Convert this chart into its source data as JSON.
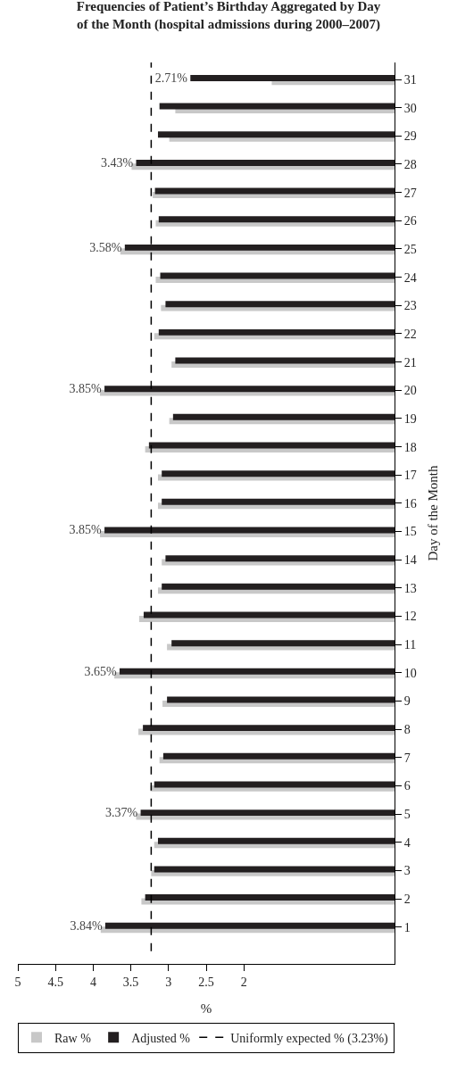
{
  "chart_data": {
    "type": "bar",
    "orientation": "horizontal",
    "title": "Frequencies of Patient’s Birthday Aggregated by Day of the Month (hospital admissions during 2000–2007)",
    "xlabel": "%",
    "ylabel": "Day of the Month",
    "categories": [
      "31",
      "30",
      "29",
      "28",
      "27",
      "26",
      "25",
      "24",
      "23",
      "22",
      "21",
      "20",
      "19",
      "18",
      "17",
      "16",
      "15",
      "14",
      "13",
      "12",
      "11",
      "10",
      "9",
      "8",
      "7",
      "6",
      "5",
      "4",
      "3",
      "2",
      "1"
    ],
    "series": [
      {
        "name": "Raw %",
        "color": "#c8c8c8",
        "values": [
          1.63,
          2.91,
          2.99,
          3.49,
          3.21,
          3.17,
          3.64,
          3.17,
          3.1,
          3.19,
          2.96,
          3.91,
          2.99,
          3.31,
          3.14,
          3.14,
          3.91,
          3.09,
          3.14,
          3.39,
          3.02,
          3.72,
          3.08,
          3.4,
          3.12,
          3.24,
          3.43,
          3.19,
          3.23,
          3.36,
          3.9
        ]
      },
      {
        "name": "Adjusted %",
        "color": "#231f20",
        "values": [
          2.71,
          3.12,
          3.14,
          3.43,
          3.18,
          3.13,
          3.58,
          3.11,
          3.04,
          3.13,
          2.91,
          3.85,
          2.94,
          3.26,
          3.09,
          3.09,
          3.85,
          3.04,
          3.09,
          3.33,
          2.96,
          3.65,
          3.02,
          3.34,
          3.07,
          3.19,
          3.37,
          3.14,
          3.19,
          3.31,
          3.84
        ],
        "value_labels": [
          "2.71%",
          null,
          null,
          "3.43%",
          null,
          null,
          "3.58%",
          null,
          null,
          null,
          null,
          "3.85%",
          null,
          null,
          null,
          null,
          "3.85%",
          null,
          null,
          null,
          null,
          "3.65%",
          null,
          null,
          null,
          null,
          "3.37%",
          null,
          null,
          null,
          "3.84%"
        ]
      }
    ],
    "ref_lines": [
      {
        "axis": "x",
        "value": 3.23,
        "label": "Uniformly expected % (3.23%)",
        "color": "#000000",
        "line_style": "dashed"
      }
    ],
    "xlim": [
      5,
      0
    ],
    "xticks": [
      2,
      2.5,
      3,
      3.5,
      4,
      4.5,
      5
    ],
    "grid": false,
    "legend": "bottom"
  }
}
